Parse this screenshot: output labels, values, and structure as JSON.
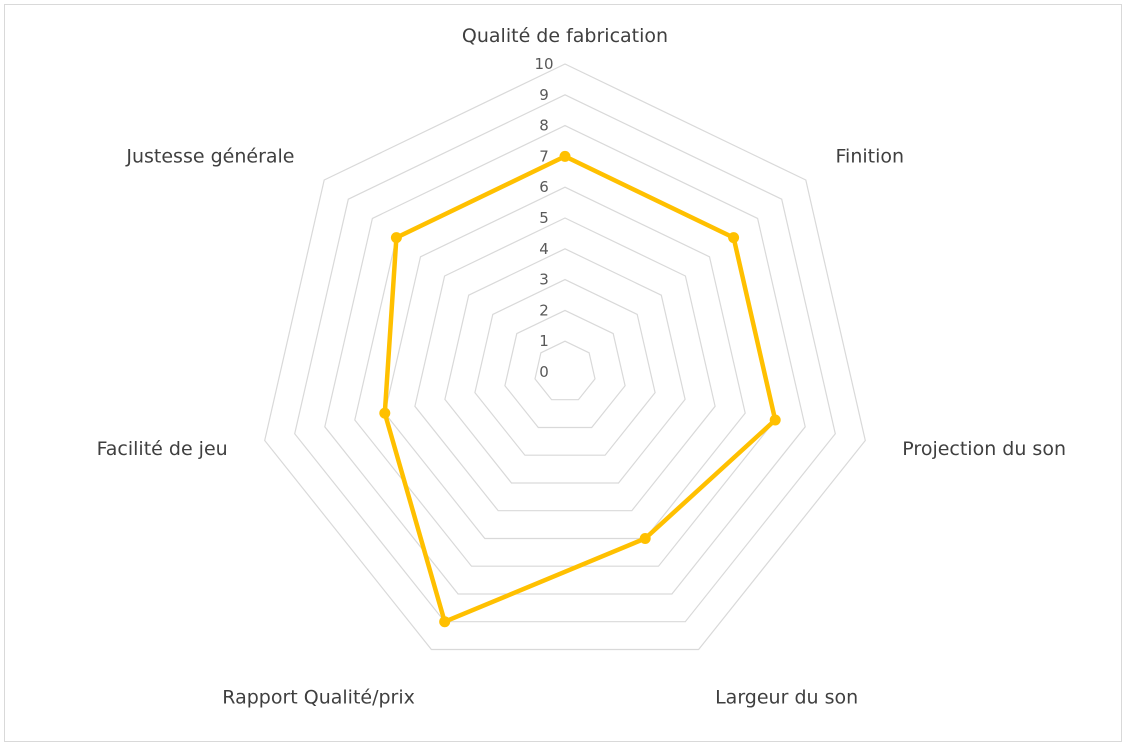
{
  "chart_data": {
    "type": "radar",
    "title": "",
    "categories": [
      "Qualité de fabrication",
      "Finition",
      "Projection du son",
      "Largeur du son",
      "Rapport Qualité/prix",
      "Facilité de jeu",
      "Justesse générale"
    ],
    "series": [
      {
        "values": [
          7,
          7,
          7,
          6,
          9,
          6,
          7
        ],
        "color": "#FFC000"
      }
    ],
    "ylim": [
      0,
      10
    ],
    "ticks": [
      "0",
      "1",
      "2",
      "3",
      "4",
      "5",
      "6",
      "7",
      "8",
      "9",
      "10"
    ],
    "grid": true,
    "legend": "none"
  }
}
